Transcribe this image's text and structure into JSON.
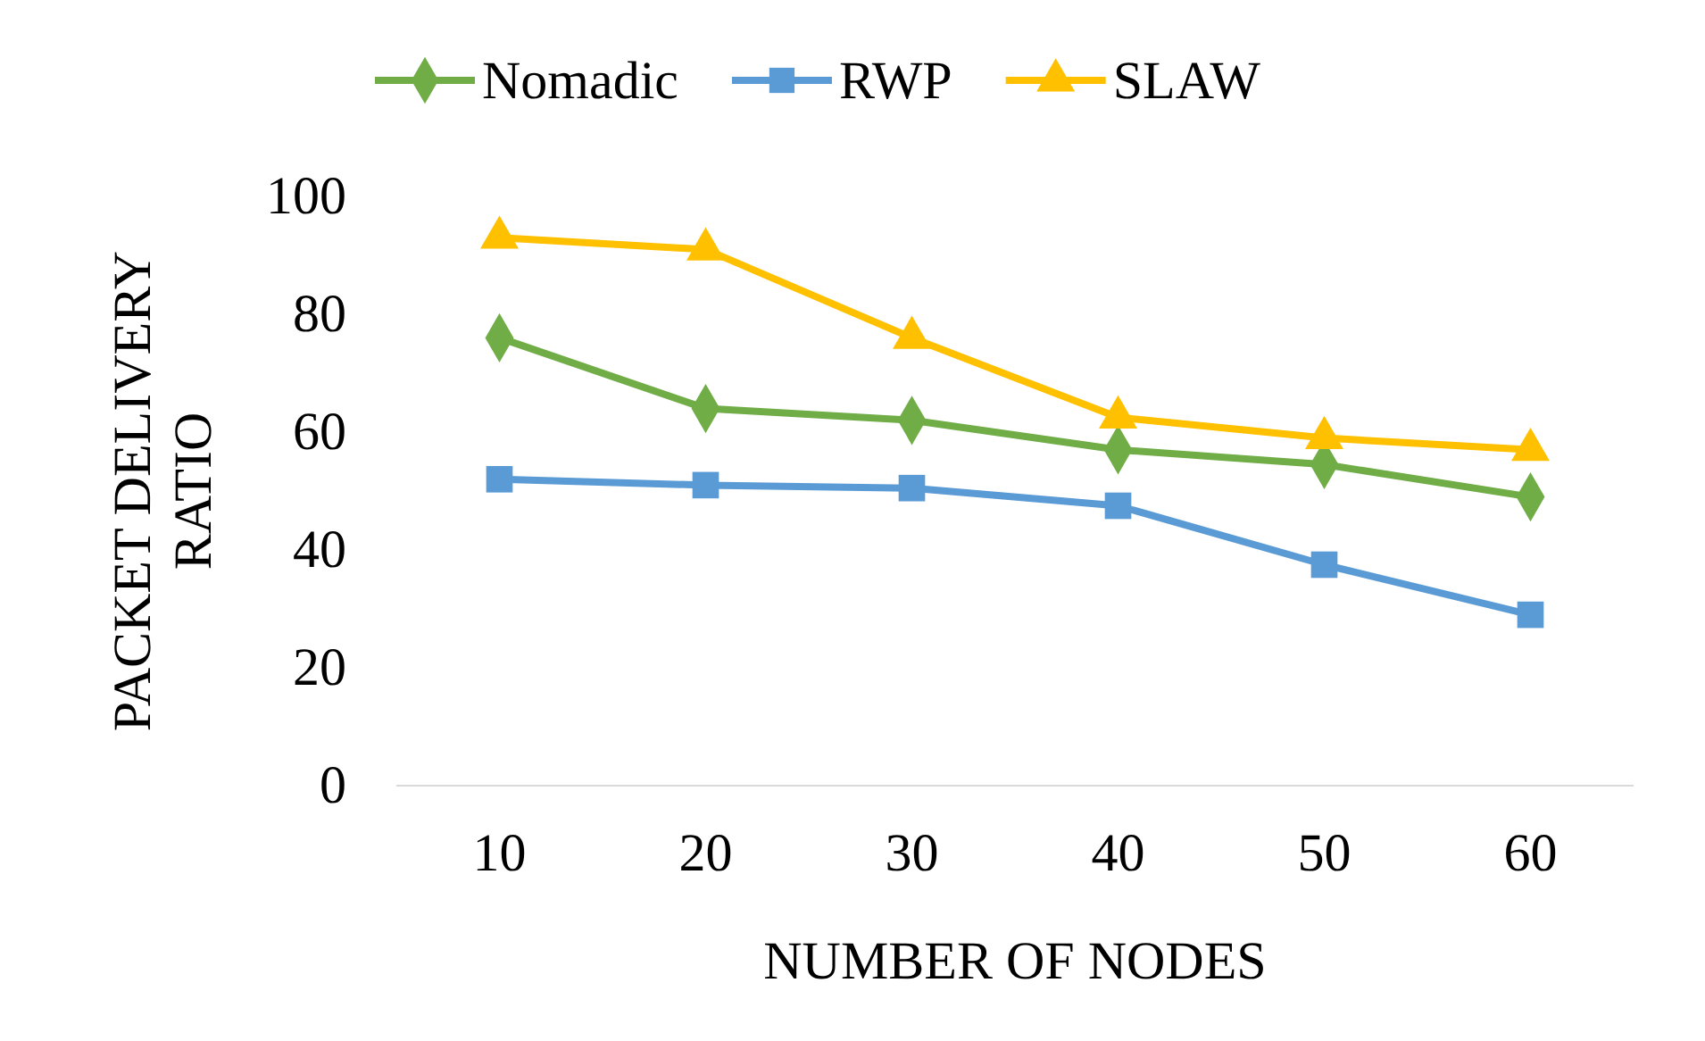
{
  "chart_data": {
    "type": "line",
    "xlabel": "NUMBER OF NODES",
    "ylabel": "PACKET DELIVERY RATIO",
    "categories": [
      "10",
      "20",
      "30",
      "40",
      "50",
      "60"
    ],
    "ylim": [
      0,
      100
    ],
    "yticks": [
      0,
      20,
      40,
      60,
      80,
      100
    ],
    "grid": false,
    "legend": "top",
    "line_style": "solid",
    "series": [
      {
        "name": "Nomadic",
        "color": "#70ad47",
        "marker": "diamond",
        "values": [
          76,
          64,
          62,
          57,
          54.5,
          49
        ]
      },
      {
        "name": "RWP",
        "color": "#5b9bd5",
        "marker": "square",
        "values": [
          52,
          51,
          50.5,
          47.5,
          37.5,
          29
        ]
      },
      {
        "name": "SLAW",
        "color": "#ffc000",
        "marker": "triangle",
        "values": [
          93,
          91,
          76,
          62.5,
          59,
          57
        ]
      }
    ]
  }
}
